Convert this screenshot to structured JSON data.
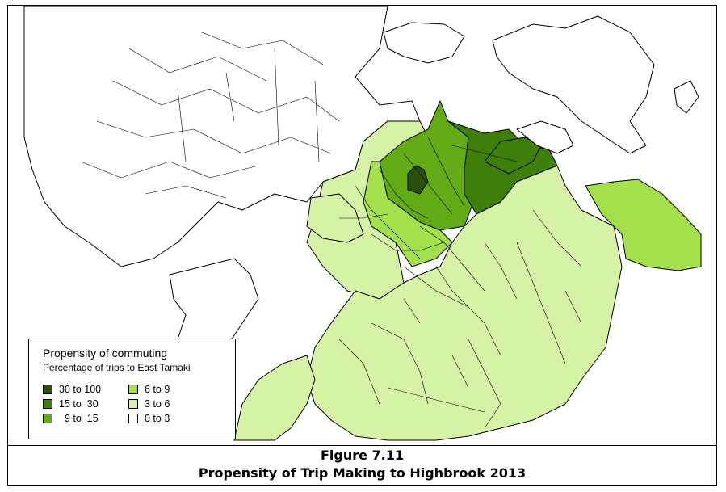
{
  "legend": {
    "title": "Propensity of commuting",
    "subtitle": "Percentage of trips to East Tamaki",
    "classes": [
      {
        "label": "30 to 100",
        "color": "#2d4f0d"
      },
      {
        "label": "15 to  30",
        "color": "#3e7f0a"
      },
      {
        "label": "  9 to  15",
        "color": "#62ab17"
      },
      {
        "label": "6 to 9",
        "color": "#a3e04c"
      },
      {
        "label": "3 to 6",
        "color": "#d6f2a6"
      },
      {
        "label": "0 to 3",
        "color": "#ffffff"
      }
    ]
  },
  "caption": {
    "figure_number": "Figure 7.11",
    "title": "Propensity of Trip Making to Highbrook 2013"
  },
  "map": {
    "sea_color": "#ffffff",
    "boundary_color": "#000000"
  }
}
